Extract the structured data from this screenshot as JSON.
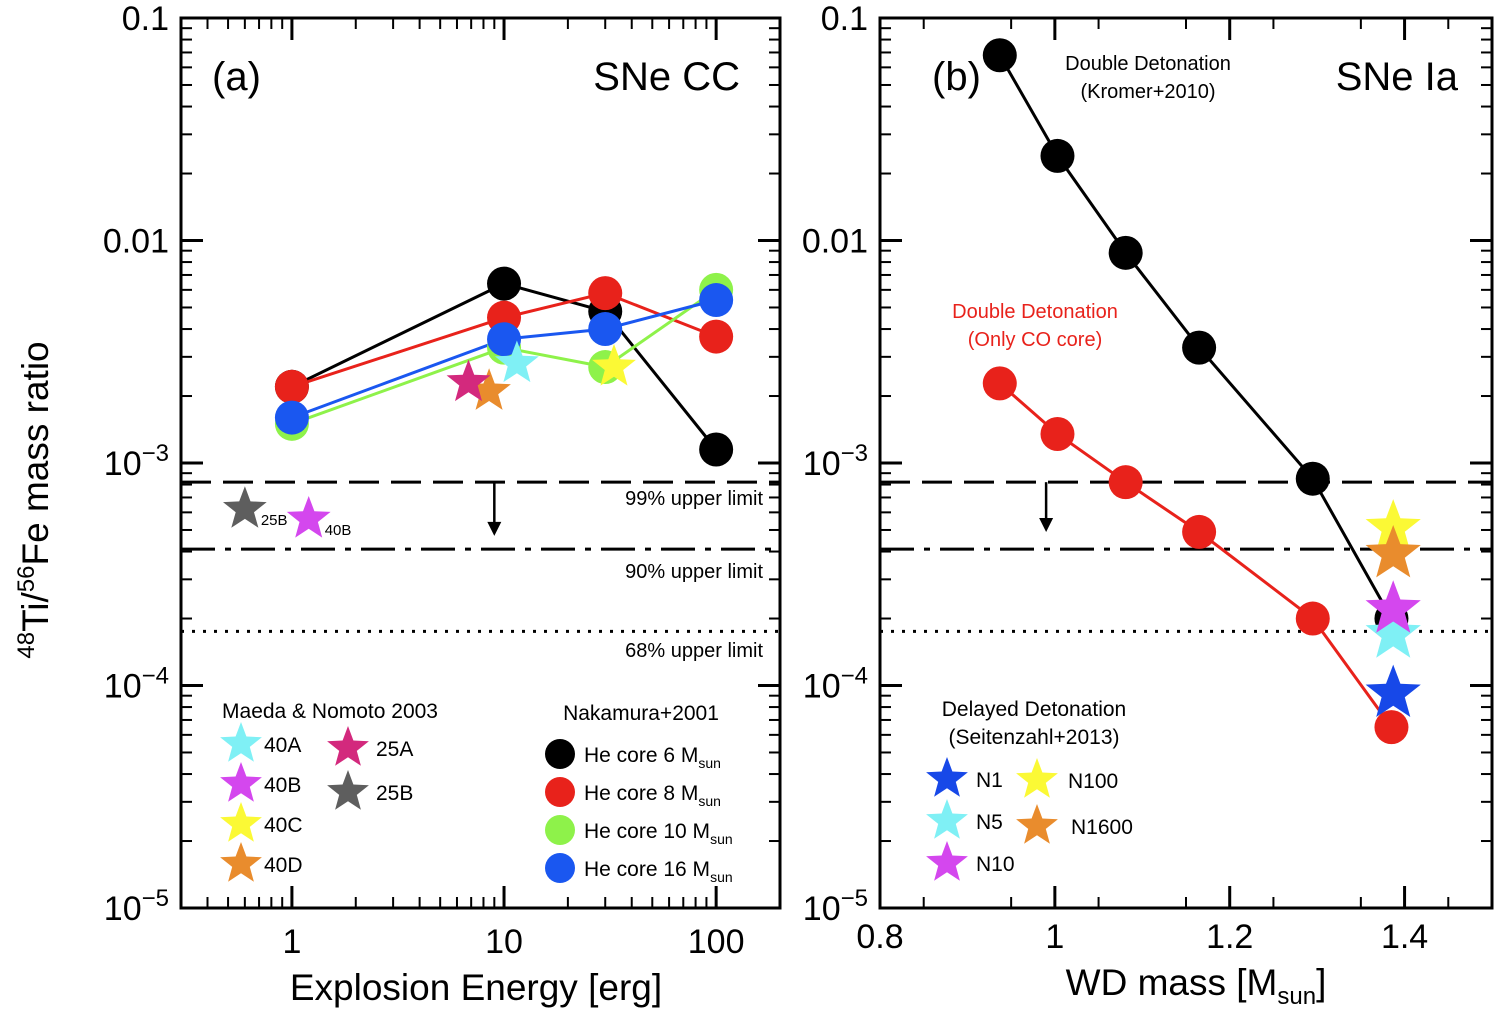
{
  "figure": {
    "ylabel": "48Ti/56Fe mass ratio",
    "ylabel_sup1": "48",
    "ylabel_mid": "Ti/",
    "ylabel_sup2": "56",
    "ylabel_rest": "Fe mass ratio"
  },
  "colors": {
    "he6": "#000000",
    "he8": "#e8221b",
    "he10": "#8ef24a",
    "he16": "#1a57f0",
    "40A": "#7ff0f5",
    "40B": "#d447ee",
    "40C": "#fbf935",
    "40D": "#e98c2d",
    "25A": "#d3297d",
    "25B": "#5e5e5e",
    "N1": "#1748e8",
    "N5": "#7ff0f5",
    "N10": "#d447ee",
    "N100": "#fbf935",
    "N1600": "#e98c2d",
    "dd_full": "#000000",
    "dd_co": "#e8221b"
  },
  "chart_data": [
    {
      "type": "scatter",
      "panel_label": "(a)",
      "title": "SNe CC",
      "xlabel": "Explosion Energy [erg]",
      "ylabel": "48Ti/56Fe mass ratio",
      "xscale": "log",
      "yscale": "log",
      "xlim": [
        0.3,
        200
      ],
      "ylim": [
        1e-05,
        0.1
      ],
      "xticks": [
        {
          "value": 1,
          "label": "1"
        },
        {
          "value": 10,
          "label": "10"
        },
        {
          "value": 100,
          "label": "100"
        }
      ],
      "yticks": [
        {
          "value": 0.1,
          "label": "0.1",
          "kind": "plain"
        },
        {
          "value": 0.01,
          "label": "0.01",
          "kind": "plain"
        },
        {
          "value": 0.001,
          "label": "10",
          "exp": "−3",
          "kind": "pow"
        },
        {
          "value": 0.0001,
          "label": "10",
          "exp": "−4",
          "kind": "pow"
        },
        {
          "value": 1e-05,
          "label": "10",
          "exp": "−5",
          "kind": "pow"
        }
      ],
      "series": [
        {
          "name": "He core 6 Msun",
          "label": "He core 6 M",
          "sub": "sun",
          "color": "#000000",
          "x": [
            1,
            10,
            30,
            100
          ],
          "y": [
            0.0022,
            0.0064,
            0.0048,
            0.00115
          ]
        },
        {
          "name": "He core 8 Msun",
          "label": "He core 8 M",
          "sub": "sun",
          "color": "#e8221b",
          "x": [
            1,
            10,
            30,
            100
          ],
          "y": [
            0.0022,
            0.0045,
            0.0058,
            0.0037
          ]
        },
        {
          "name": "He core 10 Msun",
          "label": "He core 10 M",
          "sub": "sun",
          "color": "#8ef24a",
          "x": [
            1,
            10,
            30,
            100
          ],
          "y": [
            0.0015,
            0.0033,
            0.0027,
            0.006
          ]
        },
        {
          "name": "He core 16 Msun",
          "label": "He core 16 M",
          "sub": "sun",
          "color": "#1a57f0",
          "x": [
            1,
            10,
            30,
            100
          ],
          "y": [
            0.0016,
            0.0036,
            0.004,
            0.0054
          ]
        }
      ],
      "series_legend_title": "Nakamura+2001",
      "stars": [
        {
          "name": "40A",
          "color": "#7ff0f5",
          "x": 11.5,
          "y": 0.0028
        },
        {
          "name": "40B",
          "color": "#d447ee",
          "x": 1.2,
          "y": 0.00056,
          "tag": "40B"
        },
        {
          "name": "40C",
          "color": "#fbf935",
          "x": 33,
          "y": 0.0027
        },
        {
          "name": "40D",
          "color": "#e98c2d",
          "x": 8.5,
          "y": 0.0021
        },
        {
          "name": "25A",
          "color": "#d3297d",
          "x": 6.8,
          "y": 0.0023
        },
        {
          "name": "25B",
          "color": "#5e5e5e",
          "x": 0.6,
          "y": 0.00062,
          "tag": "25B"
        }
      ],
      "star_legend_title": "Maeda & Nomoto 2003",
      "limits": [
        {
          "label": "99% upper limit",
          "value": 0.00082,
          "style": "dashed"
        },
        {
          "label": "90% upper limit",
          "value": 0.00041,
          "style": "dashdot"
        },
        {
          "label": "68% upper limit",
          "value": 0.000175,
          "style": "dotted"
        }
      ],
      "arrow": {
        "x": 9,
        "from": 0.00082,
        "to": 0.00048
      }
    },
    {
      "type": "scatter",
      "panel_label": "(b)",
      "title": "SNe Ia",
      "xlabel": "WD mass [M",
      "xlabel_sub": "sun",
      "xlabel_end": "]",
      "ylabel": "48Ti/56Fe mass ratio",
      "xscale": "linear",
      "yscale": "log",
      "xlim": [
        0.8,
        1.5
      ],
      "ylim": [
        1e-05,
        0.1
      ],
      "xticks": [
        {
          "value": 0.8,
          "label": "0.8"
        },
        {
          "value": 1.0,
          "label": "1"
        },
        {
          "value": 1.2,
          "label": "1.2"
        },
        {
          "value": 1.4,
          "label": "1.4"
        }
      ],
      "yticks": [
        {
          "value": 0.1,
          "label": "0.1",
          "kind": "plain"
        },
        {
          "value": 0.01,
          "label": "0.01",
          "kind": "plain"
        },
        {
          "value": 0.001,
          "label": "10",
          "exp": "−3",
          "kind": "pow"
        },
        {
          "value": 0.0001,
          "label": "10",
          "exp": "−4",
          "kind": "pow"
        },
        {
          "value": 1e-05,
          "label": "10",
          "exp": "−5",
          "kind": "pow"
        }
      ],
      "series": [
        {
          "name": "Double Detonation (Kromer+2010)",
          "color": "#000000",
          "x": [
            0.937,
            1.003,
            1.081,
            1.165,
            1.295,
            1.385
          ],
          "y": [
            0.068,
            0.024,
            0.0088,
            0.0033,
            0.00085,
            0.0002
          ]
        },
        {
          "name": "Double Detonation (Only CO core)",
          "color": "#e8221b",
          "x": [
            0.937,
            1.003,
            1.081,
            1.165,
            1.295,
            1.385
          ],
          "y": [
            0.00228,
            0.00135,
            0.00082,
            0.00049,
            0.0002,
            6.5e-05
          ]
        }
      ],
      "series_notes": [
        {
          "line1": "Double Detonation",
          "line2": "(Kromer+2010)",
          "color": "#000000"
        },
        {
          "line1": "Double Detonation",
          "line2": "(Only CO core)",
          "color": "#e8221b"
        }
      ],
      "stars": [
        {
          "name": "N1",
          "color": "#1748e8",
          "x": 1.387,
          "y": 9.2e-05
        },
        {
          "name": "N5",
          "color": "#7ff0f5",
          "x": 1.387,
          "y": 0.00017
        },
        {
          "name": "N10",
          "color": "#d447ee",
          "x": 1.387,
          "y": 0.00022
        },
        {
          "name": "N100",
          "color": "#fbf935",
          "x": 1.387,
          "y": 0.00051
        },
        {
          "name": "N1600",
          "color": "#e98c2d",
          "x": 1.387,
          "y": 0.00039
        }
      ],
      "star_legend_title": "Delayed Detonation",
      "star_legend_subtitle": "(Seitenzahl+2013)",
      "limits": [
        {
          "label": "",
          "value": 0.00082,
          "style": "dashed"
        },
        {
          "label": "",
          "value": 0.00041,
          "style": "dashdot"
        },
        {
          "label": "",
          "value": 0.000175,
          "style": "dotted"
        }
      ],
      "arrow": {
        "x": 0.99,
        "from": 0.00082,
        "to": 0.0005
      }
    }
  ]
}
